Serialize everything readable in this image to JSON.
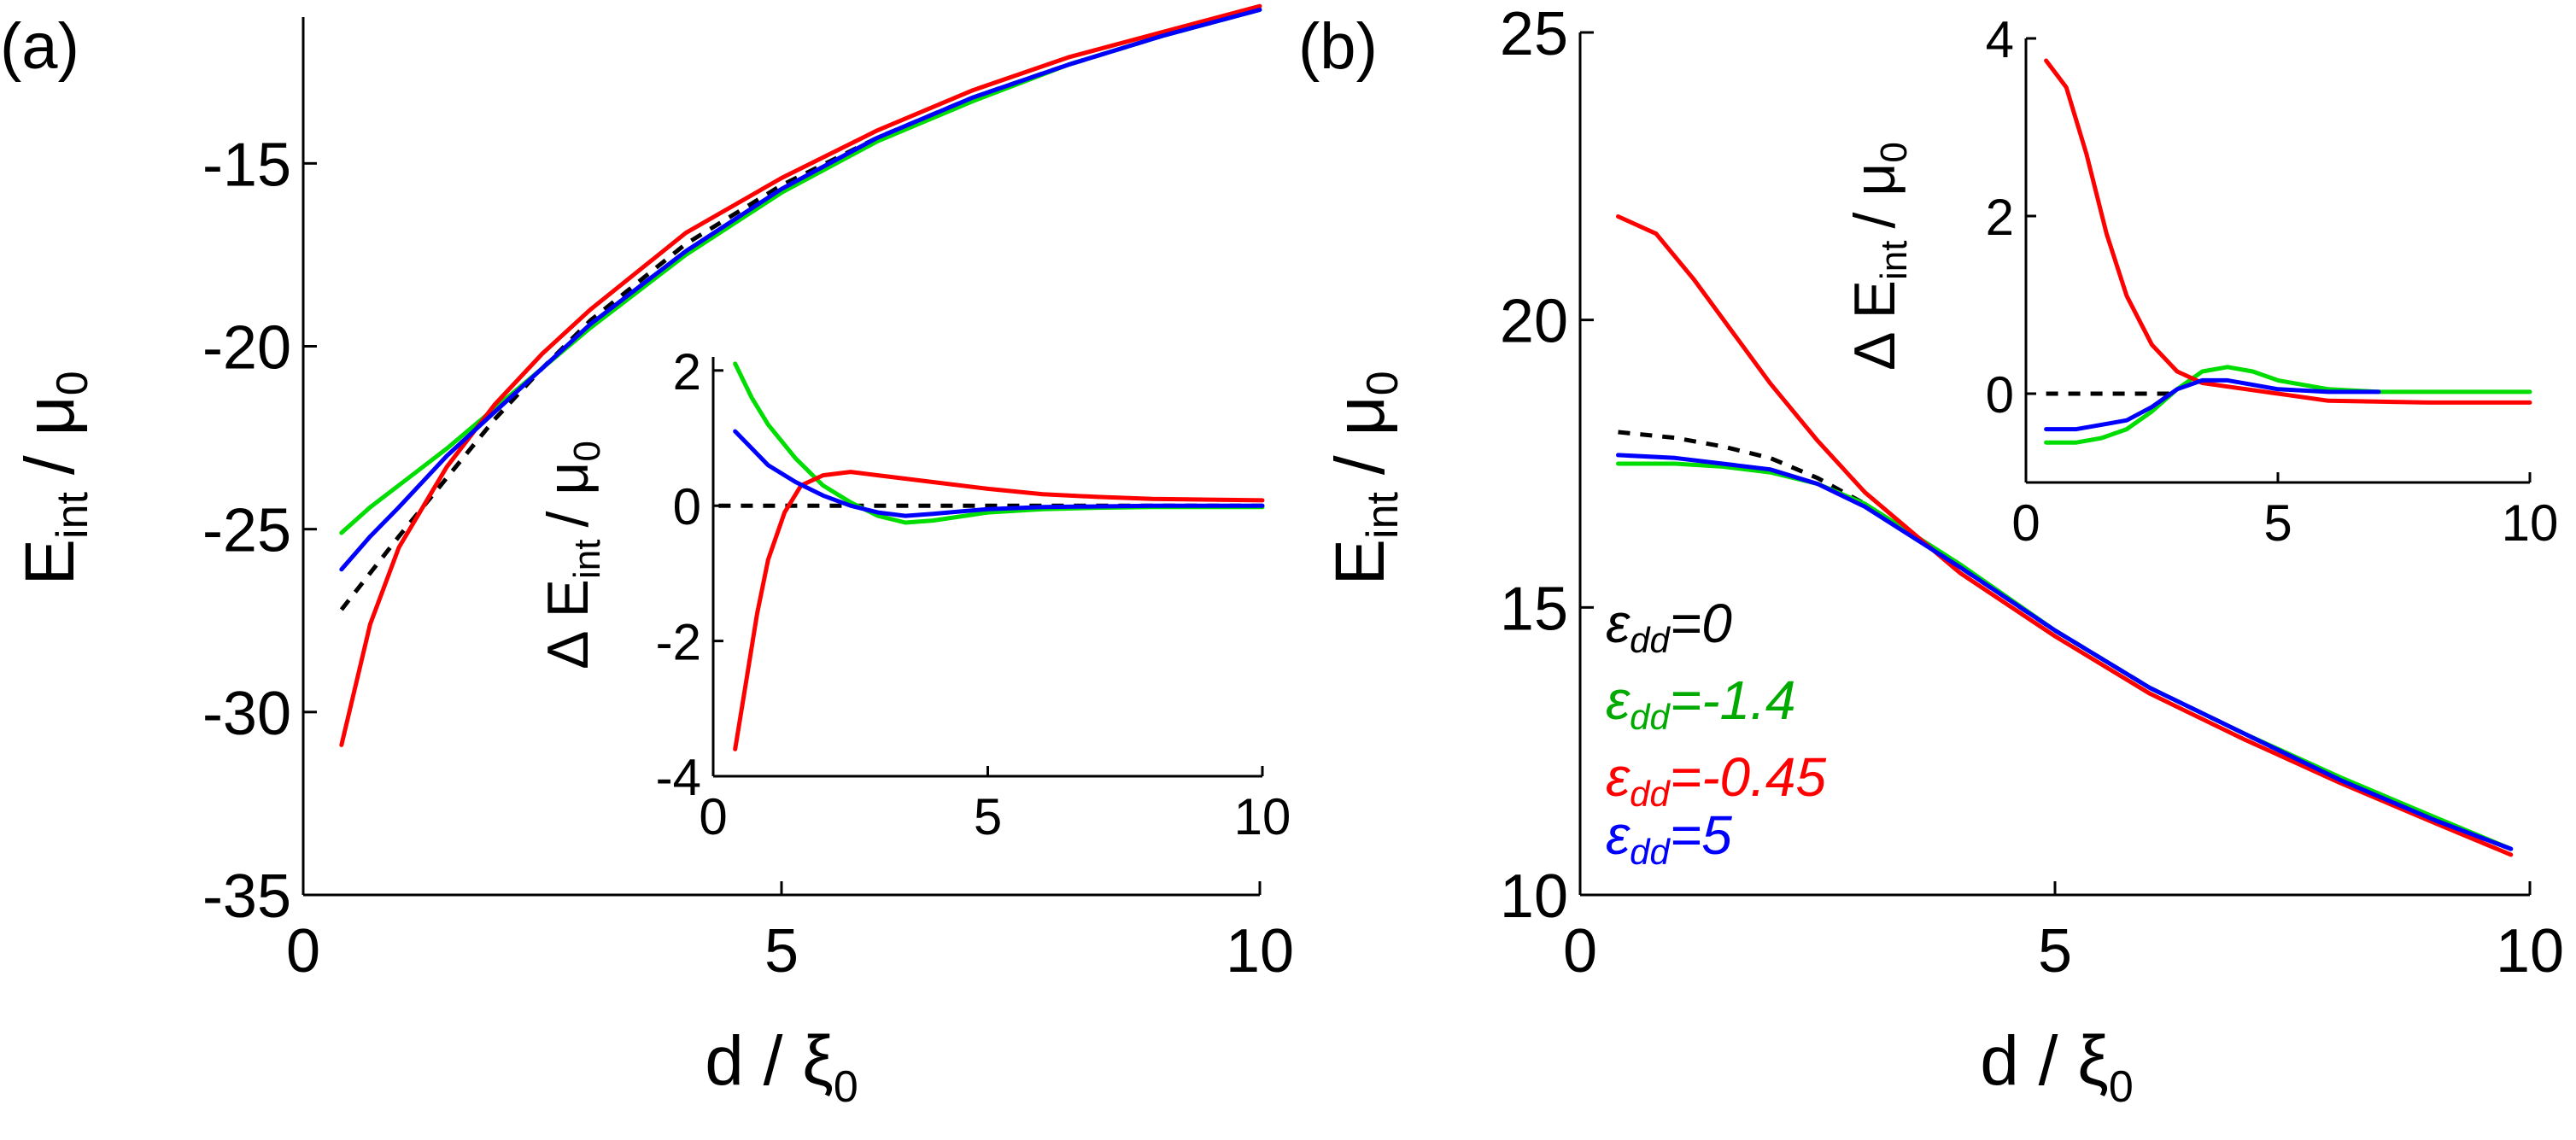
{
  "chart_data": [
    {
      "panel_label": "(a)",
      "type": "line",
      "xlabel": "d / ξ",
      "xlabel_sub": "0",
      "ylabel_main": "E",
      "ylabel_sub": "int",
      "ylabel_tail": "/ μ",
      "ylabel_tail_sub": "0",
      "xlim": [
        0,
        10
      ],
      "ylim": [
        -35,
        -11
      ],
      "xticks": [
        0,
        5,
        10
      ],
      "yticks": [
        -35,
        -30,
        -25,
        -20,
        -15
      ],
      "series": [
        {
          "name": "εdd=0",
          "color": "#000000",
          "dashed": true,
          "x": [
            0.4,
            0.7,
            1.0,
            1.5,
            2.0,
            2.5,
            3.0,
            4.0,
            5.0,
            6.0,
            7.0,
            8.0,
            9.0,
            10.0
          ],
          "y": [
            -27.2,
            -26.2,
            -25.2,
            -23.6,
            -22.0,
            -20.6,
            -19.3,
            -17.2,
            -15.6,
            -14.3,
            -13.2,
            -12.3,
            -11.5,
            -10.8
          ]
        },
        {
          "name": "εdd=-1.4",
          "color": "#00dd00",
          "dashed": false,
          "x": [
            0.4,
            0.7,
            1.0,
            1.5,
            2.0,
            2.5,
            3.0,
            4.0,
            5.0,
            6.0,
            7.0,
            8.0,
            9.0,
            10.0
          ],
          "y": [
            -25.1,
            -24.4,
            -23.8,
            -22.8,
            -21.7,
            -20.6,
            -19.5,
            -17.5,
            -15.8,
            -14.4,
            -13.3,
            -12.3,
            -11.5,
            -10.8
          ]
        },
        {
          "name": "εdd=-0.45",
          "color": "#ff0000",
          "dashed": false,
          "x": [
            0.4,
            0.7,
            1.0,
            1.5,
            2.0,
            2.5,
            3.0,
            4.0,
            5.0,
            6.0,
            7.0,
            8.0,
            9.0,
            10.0
          ],
          "y": [
            -30.9,
            -27.6,
            -25.5,
            -23.3,
            -21.6,
            -20.2,
            -19.0,
            -16.9,
            -15.4,
            -14.1,
            -13.0,
            -12.1,
            -11.4,
            -10.7
          ]
        },
        {
          "name": "εdd=5",
          "color": "#0000ff",
          "dashed": false,
          "x": [
            0.4,
            0.7,
            1.0,
            1.5,
            2.0,
            2.5,
            3.0,
            4.0,
            5.0,
            6.0,
            7.0,
            8.0,
            9.0,
            10.0
          ],
          "y": [
            -26.1,
            -25.2,
            -24.4,
            -23.0,
            -21.8,
            -20.6,
            -19.4,
            -17.4,
            -15.7,
            -14.3,
            -13.2,
            -12.3,
            -11.5,
            -10.8
          ]
        }
      ],
      "inset": {
        "type": "line",
        "ylabel": "Δ E",
        "ylabel_sub": "int",
        "ylabel_tail": "/ μ",
        "ylabel_tail_sub": "0",
        "xlim": [
          0,
          10
        ],
        "ylim": [
          -4,
          2.2
        ],
        "xticks": [
          0,
          5,
          10
        ],
        "yticks": [
          -4,
          -2,
          0,
          2
        ],
        "series": [
          {
            "name": "εdd=0",
            "color": "#000000",
            "dashed": true,
            "x": [
              0.1,
              10
            ],
            "y": [
              0,
              0
            ]
          },
          {
            "name": "εdd=-1.4",
            "color": "#00dd00",
            "dashed": false,
            "x": [
              0.4,
              0.7,
              1.0,
              1.5,
              2.0,
              2.5,
              3.0,
              3.5,
              4.0,
              5.0,
              6.0,
              7.0,
              8.0,
              10.0
            ],
            "y": [
              2.1,
              1.6,
              1.2,
              0.7,
              0.3,
              0.05,
              -0.15,
              -0.25,
              -0.22,
              -0.1,
              -0.05,
              -0.03,
              -0.02,
              -0.02
            ]
          },
          {
            "name": "εdd=-0.45",
            "color": "#ff0000",
            "dashed": false,
            "x": [
              0.4,
              0.6,
              0.8,
              1.0,
              1.3,
              1.6,
              2.0,
              2.5,
              3.0,
              4.0,
              5.0,
              6.0,
              7.0,
              8.0,
              10.0
            ],
            "y": [
              -3.6,
              -2.6,
              -1.6,
              -0.8,
              -0.1,
              0.3,
              0.45,
              0.5,
              0.45,
              0.35,
              0.25,
              0.17,
              0.13,
              0.1,
              0.08
            ]
          },
          {
            "name": "εdd=5",
            "color": "#0000ff",
            "dashed": false,
            "x": [
              0.4,
              0.7,
              1.0,
              1.5,
              2.0,
              2.5,
              3.0,
              3.5,
              4.0,
              5.0,
              6.0,
              8.0,
              10.0
            ],
            "y": [
              1.1,
              0.85,
              0.6,
              0.35,
              0.15,
              0.0,
              -0.1,
              -0.15,
              -0.12,
              -0.05,
              -0.02,
              0.0,
              0.0
            ]
          }
        ]
      }
    },
    {
      "panel_label": "(b)",
      "type": "line",
      "xlabel": "d / ξ",
      "xlabel_sub": "0",
      "ylabel_main": "E",
      "ylabel_sub": "int",
      "ylabel_tail": "/ μ",
      "ylabel_tail_sub": "0",
      "xlim": [
        0,
        10
      ],
      "ylim": [
        10,
        25
      ],
      "xticks": [
        0,
        5,
        10
      ],
      "yticks": [
        10,
        15,
        20,
        25
      ],
      "legend": [
        {
          "symbol": "ε",
          "sub": "dd",
          "value": "=0",
          "color": "#000000"
        },
        {
          "symbol": "ε",
          "sub": "dd",
          "value": "=-1.4",
          "color": "#00aa00"
        },
        {
          "symbol": "ε",
          "sub": "dd",
          "value": "=-0.45",
          "color": "#ff0000"
        },
        {
          "symbol": "ε",
          "sub": "dd",
          "value": "=5",
          "color": "#0000ff"
        }
      ],
      "series": [
        {
          "name": "εdd=0",
          "color": "#000000",
          "dashed": true,
          "x": [
            0.4,
            1.0,
            1.5,
            2.0,
            2.5,
            3.0,
            4.0,
            5.0,
            6.0,
            7.0,
            8.0,
            9.0,
            9.8
          ],
          "y": [
            18.05,
            17.95,
            17.8,
            17.6,
            17.25,
            16.8,
            15.7,
            14.6,
            13.6,
            12.8,
            12.0,
            11.3,
            10.8
          ]
        },
        {
          "name": "εdd=-1.4",
          "color": "#00dd00",
          "dashed": false,
          "x": [
            0.4,
            1.0,
            1.5,
            2.0,
            2.5,
            3.0,
            4.0,
            5.0,
            6.0,
            7.0,
            8.0,
            9.0,
            9.8
          ],
          "y": [
            17.5,
            17.5,
            17.45,
            17.35,
            17.15,
            16.8,
            15.75,
            14.6,
            13.6,
            12.8,
            12.05,
            11.35,
            10.8
          ]
        },
        {
          "name": "εdd=-0.45",
          "color": "#ff0000",
          "dashed": false,
          "x": [
            0.4,
            0.8,
            1.2,
            1.6,
            2.0,
            2.5,
            3.0,
            3.5,
            4.0,
            5.0,
            6.0,
            7.0,
            8.0,
            9.0,
            9.8
          ],
          "y": [
            21.8,
            21.5,
            20.7,
            19.8,
            18.9,
            17.9,
            17.0,
            16.3,
            15.6,
            14.5,
            13.5,
            12.7,
            11.95,
            11.25,
            10.7
          ]
        },
        {
          "name": "εdd=5",
          "color": "#0000ff",
          "dashed": false,
          "x": [
            0.4,
            1.0,
            1.5,
            2.0,
            2.5,
            3.0,
            4.0,
            5.0,
            6.0,
            7.0,
            8.0,
            9.0,
            9.8
          ],
          "y": [
            17.65,
            17.6,
            17.5,
            17.4,
            17.15,
            16.75,
            15.7,
            14.6,
            13.6,
            12.8,
            12.0,
            11.3,
            10.8
          ]
        }
      ],
      "inset": {
        "type": "line",
        "ylabel": "Δ E",
        "ylabel_sub": "int",
        "ylabel_tail": "/ μ",
        "ylabel_tail_sub": "0",
        "xlim": [
          0,
          10
        ],
        "ylim": [
          -1,
          4
        ],
        "xticks": [
          0,
          5,
          10
        ],
        "yticks": [
          0,
          2,
          4
        ],
        "series": [
          {
            "name": "εdd=0",
            "color": "#000000",
            "dashed": true,
            "x": [
              0.4,
              3.0
            ],
            "y": [
              0,
              0
            ]
          },
          {
            "name": "εdd=-1.4",
            "color": "#00dd00",
            "dashed": false,
            "x": [
              0.4,
              1.0,
              1.5,
              2.0,
              2.5,
              3.0,
              3.5,
              4.0,
              4.5,
              5.0,
              6.0,
              7.0,
              8.0,
              10.0
            ],
            "y": [
              -0.55,
              -0.55,
              -0.5,
              -0.4,
              -0.2,
              0.05,
              0.25,
              0.3,
              0.25,
              0.15,
              0.05,
              0.02,
              0.02,
              0.02
            ]
          },
          {
            "name": "εdd=-0.45",
            "color": "#ff0000",
            "dashed": false,
            "x": [
              0.4,
              0.8,
              1.2,
              1.6,
              2.0,
              2.5,
              3.0,
              3.5,
              4.0,
              5.0,
              6.0,
              8.0,
              10.0
            ],
            "y": [
              3.75,
              3.45,
              2.7,
              1.8,
              1.1,
              0.55,
              0.25,
              0.12,
              0.08,
              0.0,
              -0.08,
              -0.1,
              -0.1
            ]
          },
          {
            "name": "εdd=5",
            "color": "#0000ff",
            "dashed": false,
            "x": [
              0.4,
              1.0,
              1.5,
              2.0,
              2.5,
              3.0,
              3.5,
              4.0,
              4.5,
              5.0,
              6.0,
              7.0
            ],
            "y": [
              -0.4,
              -0.4,
              -0.35,
              -0.3,
              -0.15,
              0.05,
              0.15,
              0.15,
              0.1,
              0.05,
              0.02,
              0.02
            ]
          }
        ]
      }
    }
  ]
}
